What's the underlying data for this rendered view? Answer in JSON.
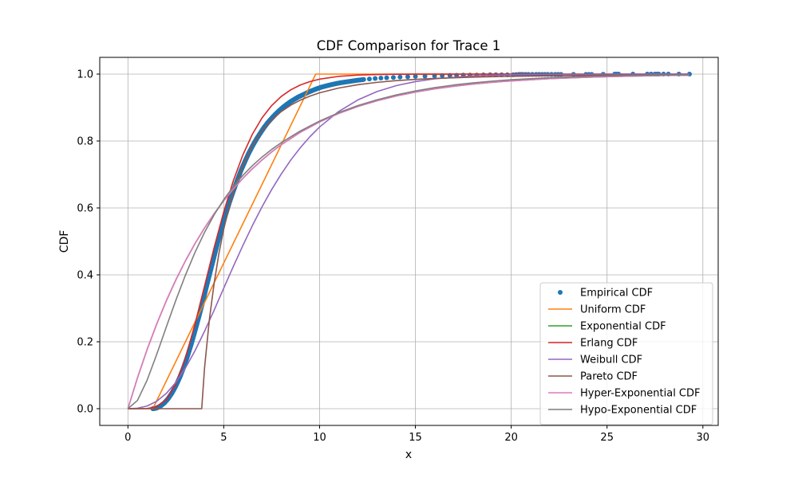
{
  "chart_data": {
    "type": "line",
    "title": "CDF Comparison for Trace 1",
    "xlabel": "x",
    "ylabel": "CDF",
    "xlim": [
      -1.47,
      30.8
    ],
    "ylim": [
      -0.05,
      1.05
    ],
    "xticks": [
      0,
      5,
      10,
      15,
      20,
      25,
      30
    ],
    "yticks": [
      0.0,
      0.2,
      0.4,
      0.6,
      0.8,
      1.0
    ],
    "xtick_labels": [
      "0",
      "5",
      "10",
      "15",
      "20",
      "25",
      "30"
    ],
    "ytick_labels": [
      "0.0",
      "0.2",
      "0.4",
      "0.6",
      "0.8",
      "1.0"
    ],
    "grid": true,
    "legend_position": "lower-right",
    "empirical": {
      "name": "Empirical CDF",
      "color": "#1f77b4",
      "x": [
        1.3,
        1.5,
        1.7,
        1.9,
        2.1,
        2.3,
        2.5,
        2.7,
        2.9,
        3.1,
        3.3,
        3.5,
        3.7,
        3.9,
        4.1,
        4.3,
        4.5,
        4.7,
        4.9,
        5.1,
        5.3,
        5.5,
        5.7,
        5.9,
        6.1,
        6.3,
        6.5,
        6.7,
        6.9,
        7.1,
        7.3,
        7.5,
        7.7,
        7.9,
        8.1,
        8.3,
        8.5,
        8.7,
        8.9,
        9.2,
        9.5,
        9.8,
        10.1,
        10.5,
        10.9,
        11.3,
        11.8,
        12.3,
        12.9,
        13.5,
        14.2,
        15.0,
        16.0,
        16.8,
        17.5,
        18.2,
        18.9,
        19.5,
        20.1,
        20.4,
        20.6,
        20.9,
        21.3,
        21.6,
        21.9,
        22.3,
        22.6,
        23.9,
        24.2,
        25.4,
        25.6,
        27.1,
        27.5,
        27.7,
        28.2,
        29.3
      ],
      "y": [
        0.0,
        0.002,
        0.008,
        0.017,
        0.03,
        0.047,
        0.068,
        0.093,
        0.122,
        0.155,
        0.192,
        0.232,
        0.274,
        0.318,
        0.365,
        0.41,
        0.455,
        0.5,
        0.54,
        0.58,
        0.617,
        0.65,
        0.682,
        0.712,
        0.738,
        0.763,
        0.785,
        0.805,
        0.823,
        0.84,
        0.855,
        0.868,
        0.88,
        0.891,
        0.901,
        0.91,
        0.918,
        0.925,
        0.932,
        0.94,
        0.948,
        0.955,
        0.961,
        0.967,
        0.972,
        0.976,
        0.98,
        0.984,
        0.987,
        0.989,
        0.991,
        0.993,
        0.995,
        0.996,
        0.997,
        0.997,
        0.998,
        0.998,
        0.998,
        0.999,
        0.999,
        0.999,
        0.999,
        0.999,
        0.999,
        0.999,
        0.999,
        0.999,
        0.999,
        1.0,
        1.0,
        1.0,
        1.0,
        1.0,
        1.0,
        1.0
      ]
    },
    "series": [
      {
        "name": "Uniform CDF",
        "color": "#ff7f0e",
        "x": [
          0,
          1.3,
          9.8,
          29.3
        ],
        "y": [
          0.0,
          0.0,
          1.0,
          1.0
        ]
      },
      {
        "name": "Exponential CDF",
        "color": "#2ca02c",
        "x": [
          0,
          0.5,
          1,
          1.5,
          2,
          2.5,
          3,
          3.5,
          4,
          4.5,
          5,
          5.5,
          6,
          6.5,
          7,
          7.5,
          8,
          9,
          10,
          11,
          12,
          13,
          14,
          15,
          16,
          17,
          18,
          19,
          20,
          22,
          24,
          26,
          28,
          29.3
        ],
        "y": [
          0.0,
          0.0926,
          0.1766,
          0.2528,
          0.322,
          0.3848,
          0.4418,
          0.4935,
          0.5404,
          0.5829,
          0.6215,
          0.6566,
          0.6884,
          0.7173,
          0.7435,
          0.7673,
          0.7889,
          0.8262,
          0.857,
          0.8823,
          0.9032,
          0.9204,
          0.9345,
          0.9461,
          0.9557,
          0.9636,
          0.97,
          0.9753,
          0.9797,
          0.9863,
          0.9907,
          0.9937,
          0.9958,
          0.9967
        ]
      },
      {
        "name": "Erlang CDF",
        "color": "#d62728",
        "x": [
          0,
          0.5,
          1,
          1.5,
          2,
          2.5,
          3,
          3.5,
          4,
          4.5,
          5,
          5.5,
          6,
          6.5,
          7,
          7.5,
          8,
          8.5,
          9,
          9.5,
          10,
          11,
          12,
          13,
          14,
          15,
          16,
          18,
          20,
          22,
          25,
          29.3
        ],
        "y": [
          0.0,
          0.0,
          0.0006,
          0.0059,
          0.0266,
          0.0737,
          0.1512,
          0.2528,
          0.3669,
          0.4818,
          0.5882,
          0.6812,
          0.7586,
          0.8209,
          0.8693,
          0.9059,
          0.9332,
          0.9532,
          0.9675,
          0.9777,
          0.9849,
          0.9932,
          0.997,
          0.9987,
          0.9995,
          0.9998,
          0.9999,
          1.0,
          1.0,
          1.0,
          1.0,
          1.0
        ]
      },
      {
        "name": "Weibull CDF",
        "color": "#9467bd",
        "x": [
          0,
          0.5,
          1,
          1.5,
          2,
          2.5,
          3,
          3.5,
          4,
          4.5,
          5,
          5.5,
          6,
          6.5,
          7,
          7.5,
          8,
          8.5,
          9,
          9.5,
          10,
          11,
          12,
          13,
          14,
          15,
          16,
          18,
          20,
          22,
          25,
          29.3
        ],
        "y": [
          0.0,
          0.0015,
          0.0081,
          0.0221,
          0.0454,
          0.0786,
          0.1215,
          0.1732,
          0.2317,
          0.2946,
          0.3602,
          0.4251,
          0.4879,
          0.5478,
          0.6036,
          0.6549,
          0.7014,
          0.7433,
          0.7804,
          0.8131,
          0.8418,
          0.8883,
          0.9228,
          0.9479,
          0.9655,
          0.9776,
          0.9857,
          0.9945,
          0.9981,
          0.9994,
          0.9999,
          1.0
        ]
      },
      {
        "name": "Pareto CDF",
        "color": "#8c564b",
        "x": [
          0,
          3.85,
          4.0,
          4.25,
          4.5,
          4.75,
          5.0,
          5.25,
          5.5,
          5.75,
          6.0,
          6.5,
          7.0,
          7.5,
          8.0,
          8.5,
          9.0,
          9.5,
          10,
          11,
          12,
          13,
          14,
          15,
          16,
          18,
          20,
          22,
          25,
          29.3
        ],
        "y": [
          0.0,
          0.0,
          0.1233,
          0.2665,
          0.3755,
          0.4646,
          0.5363,
          0.5965,
          0.6462,
          0.6896,
          0.7265,
          0.7865,
          0.8305,
          0.8632,
          0.8879,
          0.9072,
          0.9223,
          0.9343,
          0.944,
          0.9583,
          0.9683,
          0.9753,
          0.9804,
          0.9842,
          0.9871,
          0.991,
          0.9934,
          0.9951,
          0.9967,
          0.998
        ]
      },
      {
        "name": "Hyper-Exponential CDF",
        "color": "#e377c2",
        "x": [
          0,
          0.5,
          1,
          1.5,
          2,
          2.5,
          3,
          3.5,
          4,
          4.5,
          5,
          5.5,
          6,
          6.5,
          7,
          7.5,
          8,
          9,
          10,
          11,
          12,
          13,
          14,
          15,
          16,
          17,
          18,
          19,
          20,
          22,
          24,
          26,
          28,
          29.3
        ],
        "y": [
          0.0,
          0.0926,
          0.1766,
          0.2528,
          0.322,
          0.3848,
          0.4418,
          0.4935,
          0.5404,
          0.5829,
          0.6215,
          0.6566,
          0.6884,
          0.7173,
          0.7435,
          0.7673,
          0.7889,
          0.8262,
          0.857,
          0.8823,
          0.9032,
          0.9204,
          0.9345,
          0.9461,
          0.9557,
          0.9636,
          0.97,
          0.9753,
          0.9797,
          0.9863,
          0.9907,
          0.9937,
          0.9958,
          0.9967
        ]
      },
      {
        "name": "Hypo-Exponential CDF",
        "color": "#7f7f7f",
        "x": [
          0,
          0.5,
          1,
          1.5,
          2,
          2.5,
          3,
          3.5,
          4,
          4.5,
          5,
          5.5,
          6,
          6.5,
          7,
          7.5,
          8,
          9,
          10,
          11,
          12,
          13,
          14,
          15,
          16,
          17,
          18,
          19,
          20,
          22,
          24,
          26,
          28,
          29.3
        ],
        "y": [
          0.0,
          0.0248,
          0.0851,
          0.1619,
          0.2437,
          0.324,
          0.3991,
          0.4671,
          0.5272,
          0.5796,
          0.6249,
          0.6638,
          0.6975,
          0.7266,
          0.7522,
          0.7748,
          0.795,
          0.8301,
          0.8596,
          0.8847,
          0.9059,
          0.9232,
          0.9377,
          0.9497,
          0.9594,
          0.9673,
          0.9737,
          0.9789,
          0.9831,
          0.9891,
          0.993,
          0.9955,
          0.9971,
          0.9978
        ]
      }
    ]
  }
}
